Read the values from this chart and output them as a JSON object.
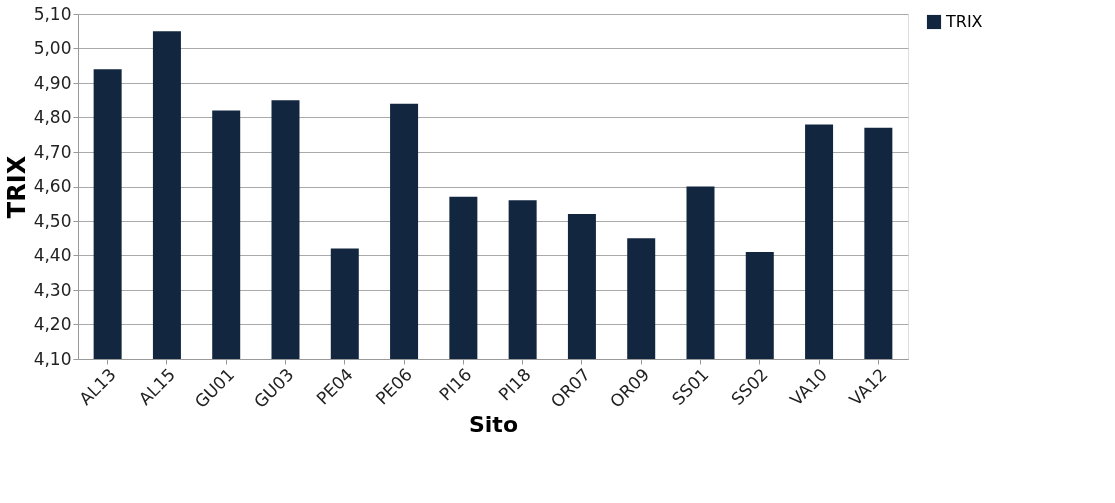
{
  "chart_data": {
    "type": "bar",
    "xlabel": "Sito",
    "ylabel": "TRIX",
    "categories": [
      "AL13",
      "AL15",
      "GU01",
      "GU03",
      "PE04",
      "PE06",
      "PI16",
      "PI18",
      "OR07",
      "OR09",
      "SS01",
      "SS02",
      "VA10",
      "VA12"
    ],
    "series": [
      {
        "name": "TRIX",
        "color": "#13263f",
        "values": [
          4.94,
          5.05,
          4.82,
          4.85,
          4.42,
          4.84,
          4.57,
          4.56,
          4.52,
          4.45,
          4.6,
          4.41,
          4.78,
          4.77
        ]
      }
    ],
    "ylim": [
      4.1,
      5.1
    ],
    "yticks": [
      {
        "value": 4.1,
        "label": "4,10"
      },
      {
        "value": 4.2,
        "label": "4,20"
      },
      {
        "value": 4.3,
        "label": "4,30"
      },
      {
        "value": 4.4,
        "label": "4,40"
      },
      {
        "value": 4.5,
        "label": "4,50"
      },
      {
        "value": 4.6,
        "label": "4,60"
      },
      {
        "value": 4.7,
        "label": "4,70"
      },
      {
        "value": 4.8,
        "label": "4,80"
      },
      {
        "value": 4.9,
        "label": "4,90"
      },
      {
        "value": 5.0,
        "label": "5,00"
      },
      {
        "value": 5.1,
        "label": "5,10"
      }
    ],
    "grid": "y",
    "legend": "right"
  }
}
